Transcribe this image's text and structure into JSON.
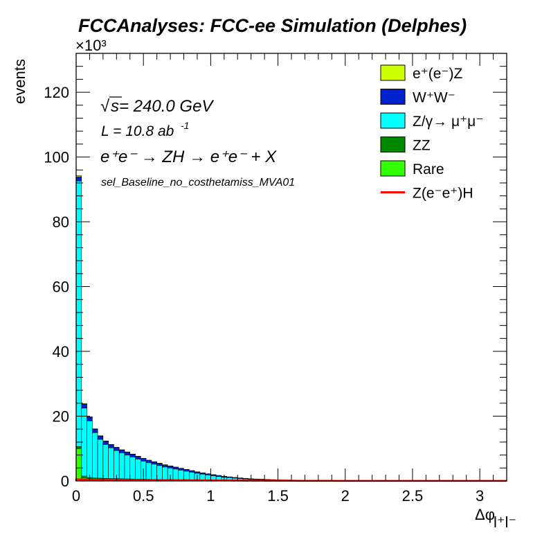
{
  "title": "FCCAnalyses: FCC-ee Simulation (Delphes)",
  "annotations": {
    "energy_prefix": "√",
    "energy_s": "s",
    "energy_value": " = 240.0 GeV",
    "lumi": "L = 10.8 ab",
    "lumi_exp": "-1",
    "process": "e⁺e⁻ → ZH → e⁺e⁻ + X",
    "selection": "sel_Baseline_no_costhetamiss_MVA01"
  },
  "legend": [
    {
      "label": "e⁺(e⁻)Z",
      "color": "#ccff00",
      "style": "fill"
    },
    {
      "label": "W⁺W⁻",
      "color": "#0022cc",
      "style": "fill"
    },
    {
      "label": "Z/γ→ μ⁺μ⁻",
      "color": "#00ffff",
      "style": "fill"
    },
    {
      "label": "ZZ",
      "color": "#008800",
      "style": "fill"
    },
    {
      "label": "Rare",
      "color": "#33ff00",
      "style": "fill"
    },
    {
      "label": "Z(e⁻e⁺)H",
      "color": "#ff0000",
      "style": "line"
    }
  ],
  "chart_data": {
    "type": "bar",
    "stacked": true,
    "xlabel": "Δφ",
    "xlabel_sub": "l⁺l⁻",
    "ylabel": "events",
    "yexponent": "×10³",
    "xlim": [
      0,
      3.2
    ],
    "ylim": [
      0,
      132
    ],
    "xticks": [
      0,
      0.5,
      1,
      1.5,
      2,
      2.5,
      3
    ],
    "xtick_labels": [
      "0",
      "0.5",
      "1",
      "1.5",
      "2",
      "2.5",
      "3"
    ],
    "yticks": [
      0,
      20,
      40,
      60,
      80,
      100,
      120
    ],
    "ytick_labels": [
      "0",
      "20",
      "40",
      "60",
      "80",
      "100",
      "120"
    ],
    "bin_width": 0.04,
    "bins": 80,
    "grid": false,
    "legend_position": "top-right",
    "series": [
      {
        "name": "Rare",
        "color": "#33ff00",
        "values": [
          10.0,
          1.0,
          0.6,
          0.5,
          0.45,
          0.4,
          0.38,
          0.35,
          0.33,
          0.3,
          0.28,
          0.26,
          0.24,
          0.22,
          0.2,
          0.18,
          0.16,
          0.15,
          0.14,
          0.12,
          0.11,
          0.1,
          0.09,
          0.08,
          0.07,
          0.06,
          0.05,
          0.04,
          0.04,
          0.03,
          0.03,
          0.02,
          0.02,
          0.02,
          0.02,
          0.01,
          0.01,
          0.01,
          0.01,
          0.01,
          0.01,
          0.01,
          0.01,
          0.01,
          0.01,
          0.01,
          0.01,
          0.01,
          0.01,
          0.01,
          0.01,
          0.01,
          0.01,
          0.01,
          0.01,
          0.01,
          0.01,
          0.01,
          0.01,
          0.01,
          0.01,
          0.01,
          0.01,
          0.01,
          0.01,
          0.01,
          0.01,
          0.01,
          0.01,
          0.01,
          0.01,
          0.01,
          0.01,
          0.01,
          0.01,
          0.01,
          0.01,
          0.01,
          0.01,
          0.01
        ]
      },
      {
        "name": "ZZ",
        "color": "#008800",
        "values": [
          0.6,
          0.5,
          0.45,
          0.42,
          0.4,
          0.38,
          0.36,
          0.35,
          0.34,
          0.33,
          0.32,
          0.31,
          0.3,
          0.29,
          0.28,
          0.27,
          0.26,
          0.25,
          0.24,
          0.23,
          0.22,
          0.21,
          0.2,
          0.19,
          0.18,
          0.17,
          0.16,
          0.15,
          0.14,
          0.13,
          0.12,
          0.11,
          0.1,
          0.1,
          0.09,
          0.09,
          0.08,
          0.08,
          0.07,
          0.07,
          0.06,
          0.06,
          0.06,
          0.05,
          0.05,
          0.05,
          0.05,
          0.04,
          0.04,
          0.04,
          0.04,
          0.04,
          0.03,
          0.03,
          0.03,
          0.03,
          0.03,
          0.03,
          0.03,
          0.02,
          0.02,
          0.02,
          0.02,
          0.02,
          0.02,
          0.02,
          0.02,
          0.02,
          0.02,
          0.02,
          0.02,
          0.02,
          0.02,
          0.02,
          0.02,
          0.02,
          0.02,
          0.02,
          0.02,
          0.02
        ]
      },
      {
        "name": "Z/γ→ μ⁺μ⁻",
        "color": "#00ffff",
        "values": [
          82.0,
          21.0,
          17.5,
          14.0,
          12.0,
          10.5,
          9.5,
          8.7,
          8.0,
          7.4,
          6.8,
          6.2,
          5.6,
          5.1,
          4.7,
          4.3,
          3.9,
          3.6,
          3.3,
          3.0,
          2.7,
          2.4,
          2.1,
          1.85,
          1.6,
          1.4,
          1.2,
          1.0,
          0.85,
          0.72,
          0.6,
          0.5,
          0.42,
          0.35,
          0.3,
          0.26,
          0.22,
          0.19,
          0.16,
          0.14,
          0.12,
          0.1,
          0.09,
          0.08,
          0.07,
          0.06,
          0.05,
          0.05,
          0.04,
          0.04,
          0.03,
          0.03,
          0.03,
          0.03,
          0.02,
          0.02,
          0.02,
          0.02,
          0.02,
          0.02,
          0.02,
          0.02,
          0.02,
          0.02,
          0.02,
          0.02,
          0.02,
          0.02,
          0.02,
          0.02,
          0.02,
          0.02,
          0.02,
          0.02,
          0.02,
          0.02,
          0.02,
          0.02,
          0.02,
          0.02
        ]
      },
      {
        "name": "W⁺W⁻",
        "color": "#0022cc",
        "values": [
          1.3,
          1.2,
          1.1,
          1.05,
          1.0,
          0.98,
          0.95,
          0.92,
          0.9,
          0.88,
          0.85,
          0.82,
          0.8,
          0.77,
          0.74,
          0.7,
          0.66,
          0.62,
          0.58,
          0.54,
          0.5,
          0.46,
          0.42,
          0.38,
          0.34,
          0.3,
          0.27,
          0.24,
          0.21,
          0.18,
          0.16,
          0.14,
          0.12,
          0.11,
          0.1,
          0.09,
          0.08,
          0.07,
          0.06,
          0.06,
          0.05,
          0.05,
          0.04,
          0.04,
          0.04,
          0.03,
          0.03,
          0.03,
          0.03,
          0.03,
          0.02,
          0.02,
          0.02,
          0.02,
          0.02,
          0.02,
          0.02,
          0.02,
          0.02,
          0.02,
          0.02,
          0.02,
          0.02,
          0.02,
          0.02,
          0.02,
          0.02,
          0.02,
          0.02,
          0.02,
          0.02,
          0.02,
          0.02,
          0.02,
          0.02,
          0.02,
          0.02,
          0.02,
          0.02,
          0.02
        ]
      },
      {
        "name": "e⁺(e⁻)Z",
        "color": "#ccff00",
        "values": [
          0.3,
          0.2,
          0.15,
          0.12,
          0.1,
          0.09,
          0.08,
          0.07,
          0.06,
          0.05,
          0.05,
          0.04,
          0.04,
          0.03,
          0.03,
          0.03,
          0.02,
          0.02,
          0.02,
          0.02,
          0.02,
          0.01,
          0.01,
          0.01,
          0.01,
          0.01,
          0.01,
          0.01,
          0.01,
          0.01,
          0.01,
          0.01,
          0.01,
          0.01,
          0.01,
          0.01,
          0.01,
          0.01,
          0.01,
          0.01,
          0.01,
          0.01,
          0.01,
          0.01,
          0.01,
          0.01,
          0.01,
          0.01,
          0.01,
          0.01,
          0.01,
          0.01,
          0.01,
          0.01,
          0.01,
          0.01,
          0.01,
          0.01,
          0.01,
          0.01,
          0.01,
          0.01,
          0.01,
          0.01,
          0.01,
          0.01,
          0.01,
          0.01,
          0.01,
          0.01,
          0.01,
          0.01,
          0.01,
          0.01,
          0.01,
          0.01,
          0.01,
          0.01,
          0.01,
          0.01
        ]
      }
    ],
    "signal": {
      "name": "Z(e⁻e⁺)H",
      "color": "#ff0000",
      "values": [
        0.5,
        0.45,
        0.42,
        0.4,
        0.39,
        0.38,
        0.37,
        0.36,
        0.35,
        0.34,
        0.33,
        0.32,
        0.31,
        0.3,
        0.29,
        0.28,
        0.27,
        0.26,
        0.25,
        0.24,
        0.23,
        0.22,
        0.21,
        0.2,
        0.19,
        0.18,
        0.17,
        0.16,
        0.15,
        0.14,
        0.13,
        0.12,
        0.11,
        0.1,
        0.1,
        0.09,
        0.09,
        0.08,
        0.08,
        0.07,
        0.07,
        0.06,
        0.06,
        0.06,
        0.05,
        0.05,
        0.05,
        0.05,
        0.04,
        0.04,
        0.04,
        0.04,
        0.04,
        0.04,
        0.03,
        0.03,
        0.03,
        0.03,
        0.03,
        0.03,
        0.03,
        0.03,
        0.03,
        0.03,
        0.03,
        0.03,
        0.03,
        0.03,
        0.03,
        0.03,
        0.03,
        0.03,
        0.03,
        0.03,
        0.03,
        0.03,
        0.03,
        0.03,
        0.03,
        0.03
      ]
    }
  }
}
